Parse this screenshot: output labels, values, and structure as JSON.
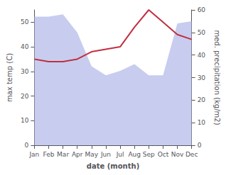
{
  "chart_data": {
    "type": "line",
    "xlabel": "date (month)",
    "ylabel": "max temp (C)",
    "y2label": "med. precipitation (kg/m2)",
    "categories": [
      "Jan",
      "Feb",
      "Mar",
      "Apr",
      "May",
      "Jun",
      "Jul",
      "Aug",
      "Sep",
      "Oct",
      "Nov",
      "Dec"
    ],
    "series": [
      {
        "type": "area",
        "color": "#b0b8e8",
        "axis": "y2",
        "values": [
          57,
          57,
          58,
          50,
          35,
          31,
          33,
          36,
          31,
          31,
          54,
          55
        ]
      },
      {
        "type": "line",
        "color": "#c03040",
        "values": [
          35,
          34,
          34,
          35,
          38,
          39,
          40,
          48,
          55,
          50,
          45,
          43
        ]
      }
    ],
    "ylim": [
      0,
      55
    ],
    "yticks": [
      0,
      10,
      20,
      30,
      40,
      50
    ],
    "y2lim": [
      0,
      60
    ],
    "y2ticks": [
      0,
      10,
      20,
      30,
      40,
      50,
      60
    ],
    "grid": false
  }
}
